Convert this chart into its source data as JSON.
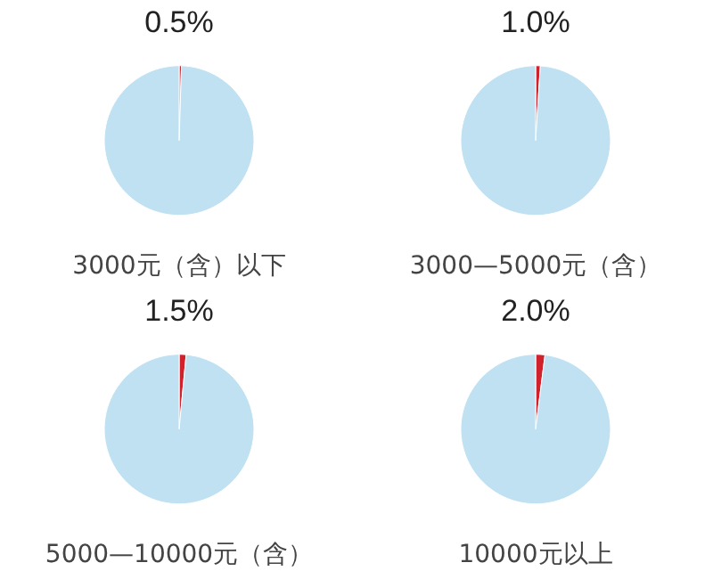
{
  "chart_data": [
    {
      "type": "pie",
      "title": "3000元（含）以下",
      "categories": [
        null,
        null
      ],
      "values": [
        0.5,
        99.5
      ],
      "colors": [
        "#d0222c",
        "#bfe1f2"
      ],
      "value_labels": [
        "0.5%",
        null
      ]
    },
    {
      "type": "pie",
      "title": "3000—5000元（含）",
      "categories": [
        null,
        null
      ],
      "values": [
        1.0,
        99.0
      ],
      "colors": [
        "#d0222c",
        "#bfe1f2"
      ],
      "value_labels": [
        "1.0%",
        null
      ]
    },
    {
      "type": "pie",
      "title": "5000—10000元（含）",
      "categories": [
        null,
        null
      ],
      "values": [
        1.5,
        98.5
      ],
      "colors": [
        "#d0222c",
        "#bfe1f2"
      ],
      "value_labels": [
        "1.5%",
        null
      ]
    },
    {
      "type": "pie",
      "title": "10000元以上",
      "categories": [
        null,
        null
      ],
      "values": [
        2.0,
        98.0
      ],
      "colors": [
        "#d0222c",
        "#bfe1f2"
      ],
      "value_labels": [
        "2.0%",
        null
      ]
    }
  ]
}
